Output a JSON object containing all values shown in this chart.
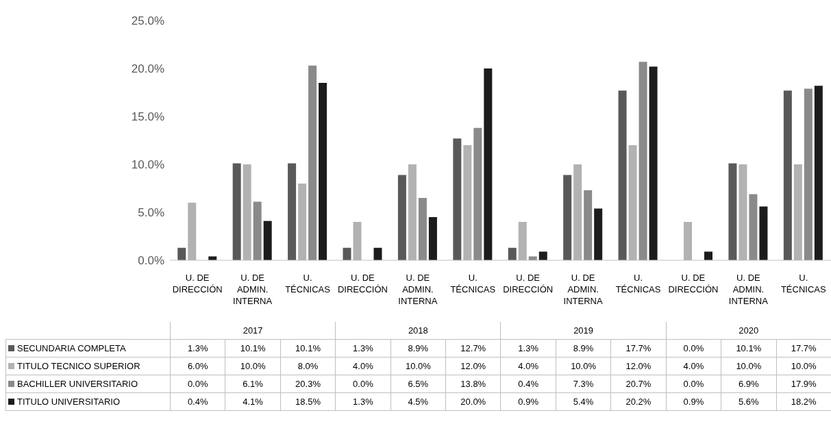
{
  "chart_data": {
    "type": "bar",
    "categories": [
      "U. DE DIRECCIÓN",
      "U. DE ADMIN. INTERNA",
      "U. TÉCNICAS",
      "U. DE DIRECCIÓN",
      "U. DE ADMIN. INTERNA",
      "U. TÉCNICAS",
      "U. DE DIRECCIÓN",
      "U. DE ADMIN. INTERNA",
      "U. TÉCNICAS",
      "U. DE DIRECCIÓN",
      "U. DE ADMIN. INTERNA",
      "U. TÉCNICAS"
    ],
    "annotations": [
      "2017",
      "2018",
      "2019",
      "2020"
    ],
    "series": [
      {
        "name": "SECUNDARIA COMPLETA",
        "color": "#595959",
        "values": [
          1.3,
          10.1,
          10.1,
          1.3,
          8.9,
          12.7,
          1.3,
          8.9,
          17.7,
          0.0,
          10.1,
          17.7
        ],
        "value_labels": [
          "1.3%",
          "10.1%",
          "10.1%",
          "1.3%",
          "8.9%",
          "12.7%",
          "1.3%",
          "8.9%",
          "17.7%",
          "0.0%",
          "10.1%",
          "17.7%"
        ]
      },
      {
        "name": "TITULO TECNICO SUPERIOR",
        "color": "#b2b2b2",
        "values": [
          6.0,
          10.0,
          8.0,
          4.0,
          10.0,
          12.0,
          4.0,
          10.0,
          12.0,
          4.0,
          10.0,
          10.0
        ],
        "value_labels": [
          "6.0%",
          "10.0%",
          "8.0%",
          "4.0%",
          "10.0%",
          "12.0%",
          "4.0%",
          "10.0%",
          "12.0%",
          "4.0%",
          "10.0%",
          "10.0%"
        ]
      },
      {
        "name": "BACHILLER UNIVERSITARIO",
        "color": "#8a8a8a",
        "values": [
          0.0,
          6.1,
          20.3,
          0.0,
          6.5,
          13.8,
          0.4,
          7.3,
          20.7,
          0.0,
          6.9,
          17.9
        ],
        "value_labels": [
          "0.0%",
          "6.1%",
          "20.3%",
          "0.0%",
          "6.5%",
          "13.8%",
          "0.4%",
          "7.3%",
          "20.7%",
          "0.0%",
          "6.9%",
          "17.9%"
        ]
      },
      {
        "name": "TITULO UNIVERSITARIO",
        "color": "#1c1c1c",
        "values": [
          0.4,
          4.1,
          18.5,
          1.3,
          4.5,
          20.0,
          0.9,
          5.4,
          20.2,
          0.9,
          5.6,
          18.2
        ],
        "value_labels": [
          "0.4%",
          "4.1%",
          "18.5%",
          "1.3%",
          "4.5%",
          "20.0%",
          "0.9%",
          "5.4%",
          "20.2%",
          "0.9%",
          "5.6%",
          "18.2%"
        ]
      }
    ],
    "ylim": [
      0,
      25
    ],
    "yticks": [
      {
        "value": 0,
        "label": "0.0%"
      },
      {
        "value": 5,
        "label": "5.0%"
      },
      {
        "value": 10,
        "label": "10.0%"
      },
      {
        "value": 15,
        "label": "15.0%"
      },
      {
        "value": 20,
        "label": "20.0%"
      },
      {
        "value": 25,
        "label": "25.0%"
      }
    ],
    "grid": false,
    "legend": "bottom"
  }
}
